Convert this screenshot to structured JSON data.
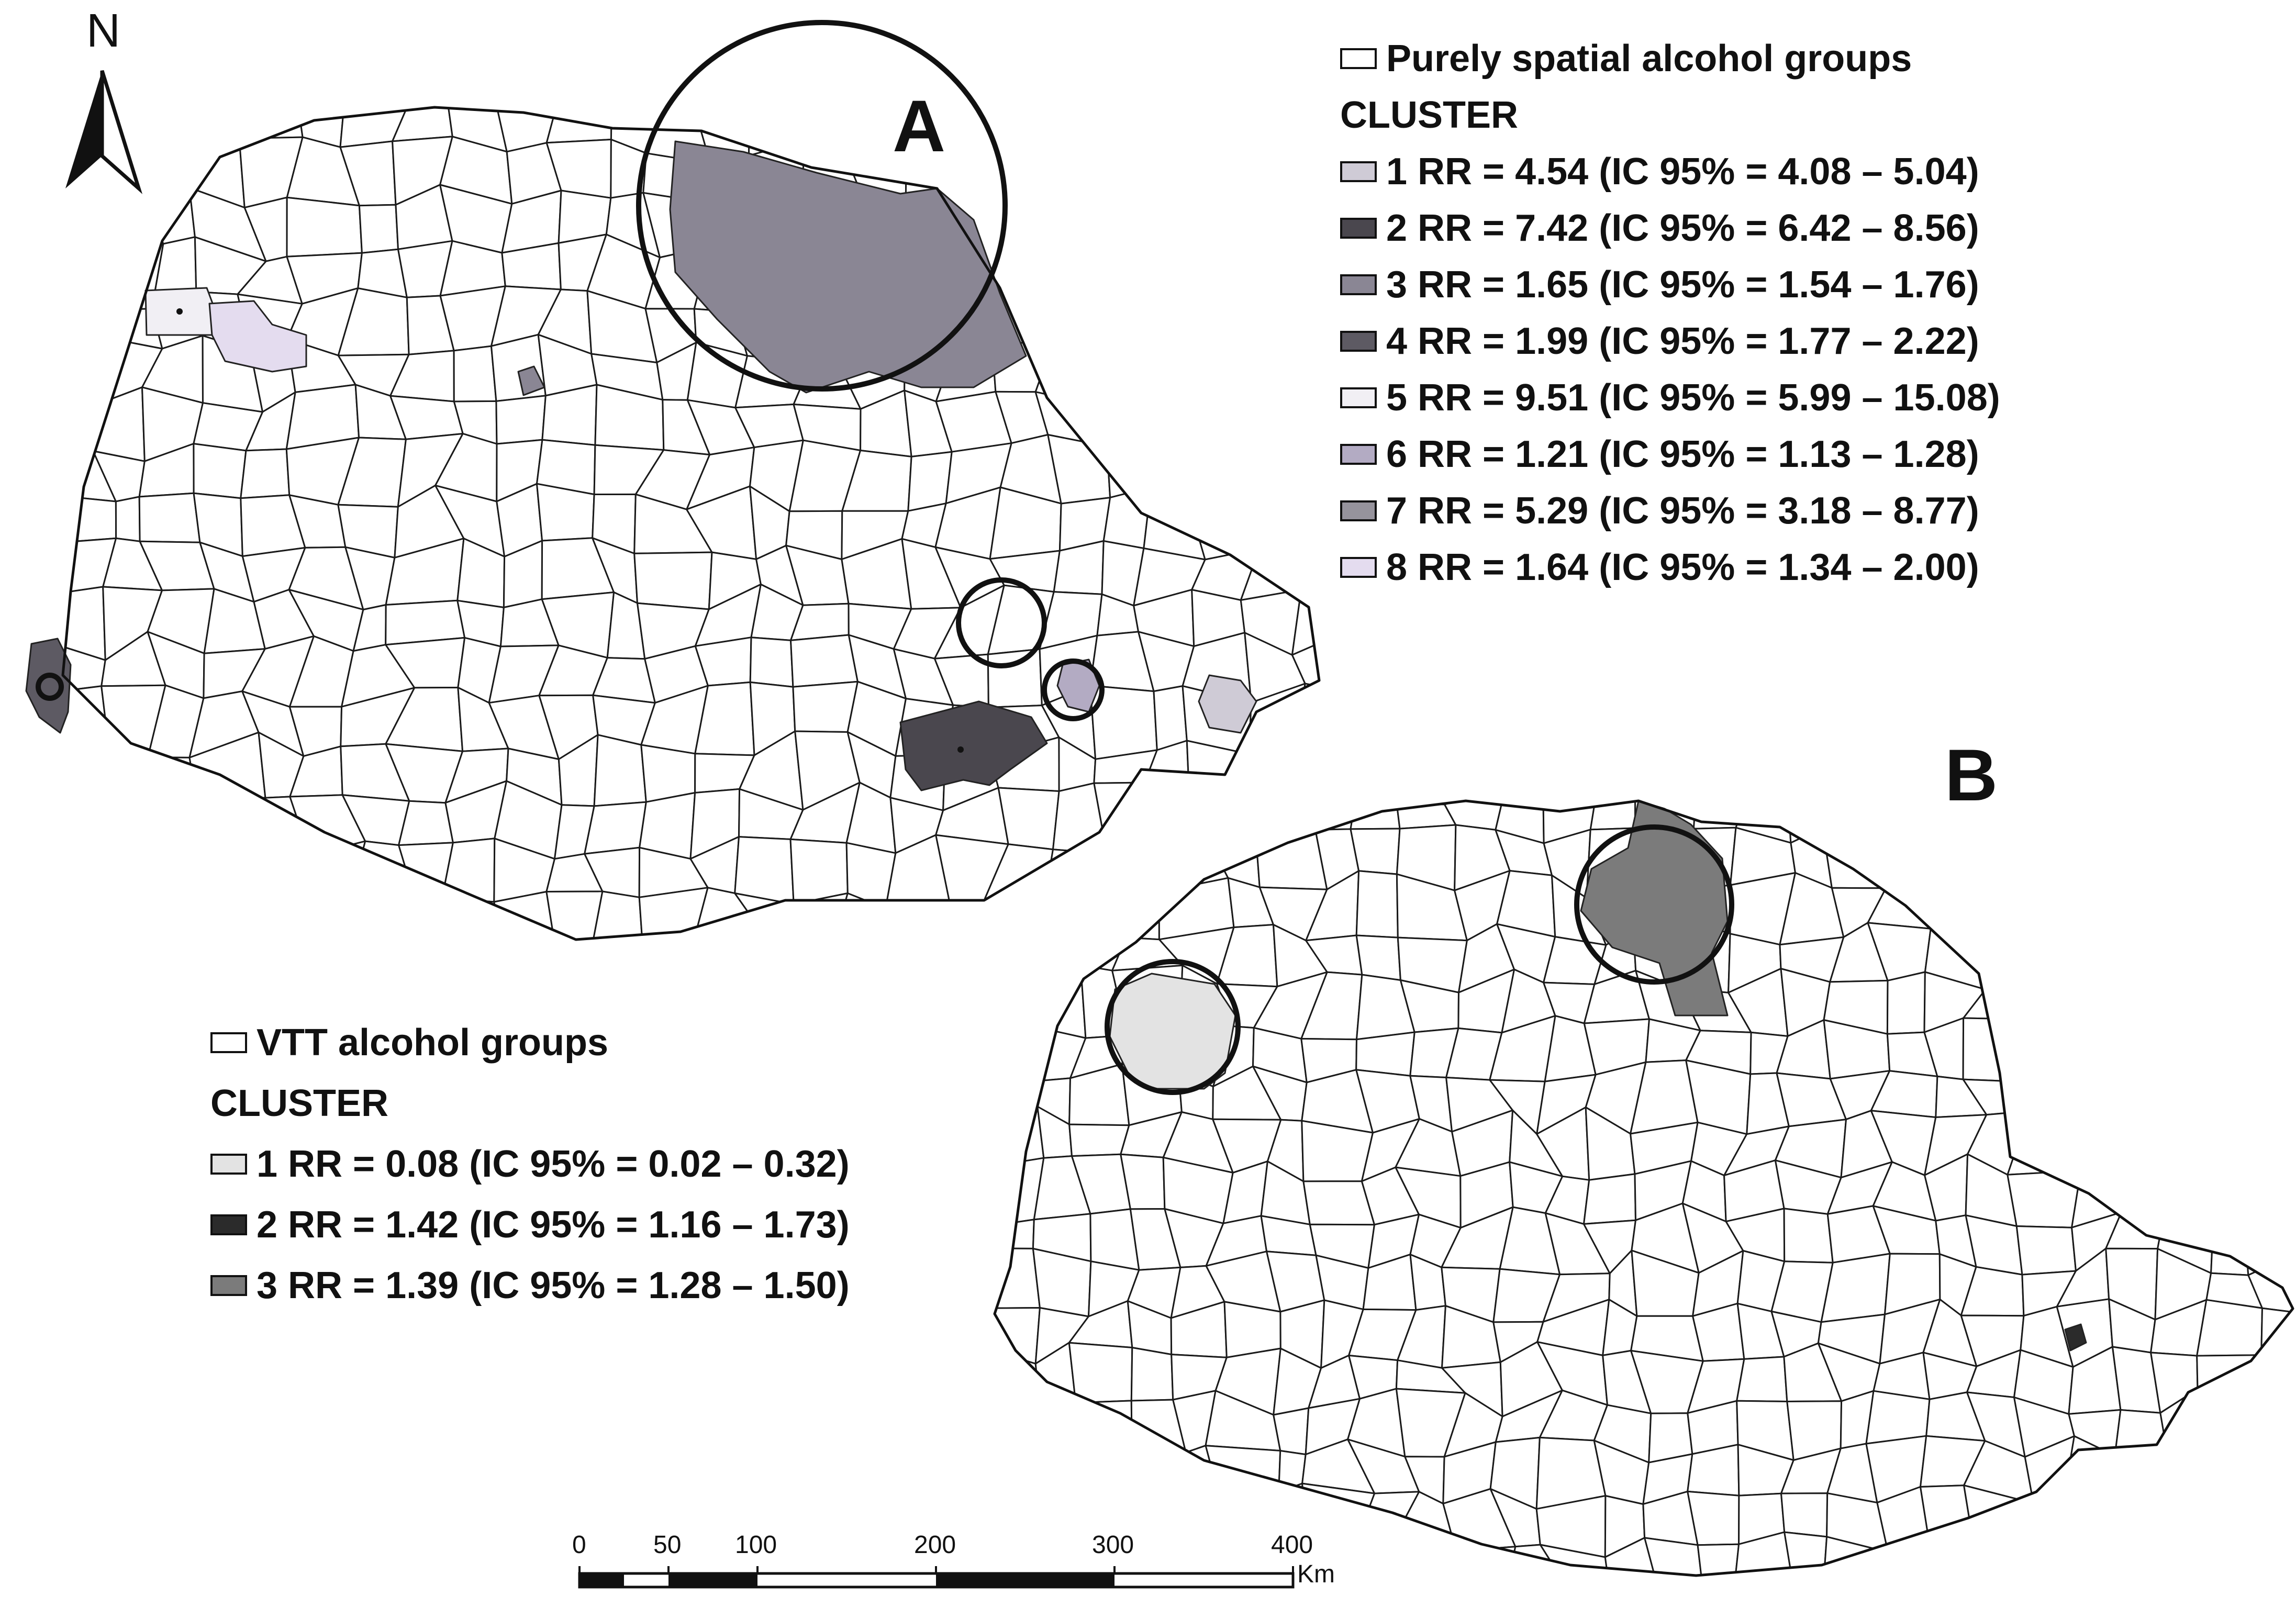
{
  "north_label": "N",
  "map_a": {
    "panel_label": "A",
    "legend": {
      "title": "Purely spatial alcohol groups",
      "heading": "CLUSTER",
      "items": [
        {
          "id": "1",
          "text": "1 RR = 4.54 (IC 95% = 4.08 – 5.04)",
          "color": "#cfcbd6"
        },
        {
          "id": "2",
          "text": "2 RR = 7.42 (IC 95% = 6.42 – 8.56)",
          "color": "#4a474e"
        },
        {
          "id": "3",
          "text": "3 RR = 1.65 (IC 95% = 1.54 – 1.76)",
          "color": "#8a8694"
        },
        {
          "id": "4",
          "text": "4 RR = 1.99 (IC 95% = 1.77 – 2.22)",
          "color": "#5d5a63"
        },
        {
          "id": "5",
          "text": "5 RR = 9.51 (IC 95% = 5.99 – 15.08)",
          "color": "#f1eff4"
        },
        {
          "id": "6",
          "text": "6 RR = 1.21 (IC 95% = 1.13 – 1.28)",
          "color": "#b3abc3"
        },
        {
          "id": "7",
          "text": "7 RR = 5.29 (IC 95% = 3.18 – 8.77)",
          "color": "#96939c"
        },
        {
          "id": "8",
          "text": "8 RR = 1.64 (IC 95% = 1.34 – 2.00)",
          "color": "#e4dcef"
        }
      ]
    }
  },
  "map_b": {
    "panel_label": "B",
    "legend": {
      "title": "VTT alcohol groups",
      "heading": "CLUSTER",
      "items": [
        {
          "id": "1",
          "text": "1 RR = 0.08 (IC 95% = 0.02 – 0.32)",
          "color": "#e3e3e3"
        },
        {
          "id": "2",
          "text": "2 RR = 1.42 (IC 95% = 1.16 – 1.73)",
          "color": "#2b2b2b"
        },
        {
          "id": "3",
          "text": "3 RR = 1.39 (IC 95% = 1.28 – 1.50)",
          "color": "#7b7b7b"
        }
      ]
    }
  },
  "scale_bar": {
    "ticks": [
      "0",
      "50",
      "100",
      "200",
      "300",
      "400"
    ],
    "unit": "Km"
  }
}
